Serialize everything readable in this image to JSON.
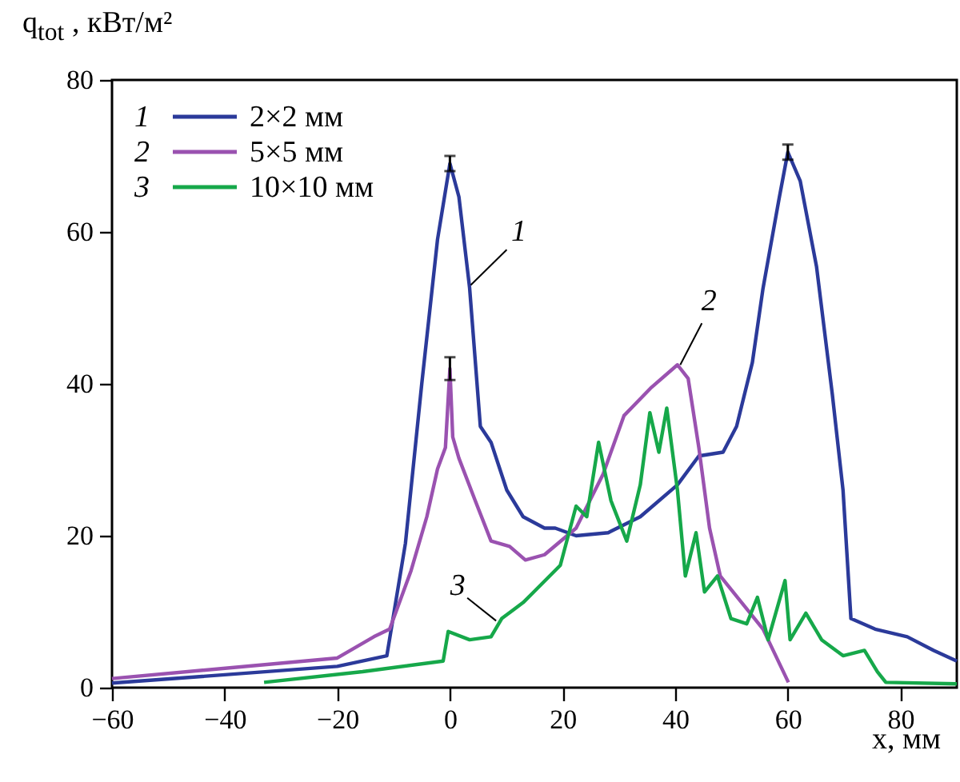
{
  "chart_data": {
    "type": "line",
    "xlabel": "x, мм",
    "ylabel": "q$_{tot}$ , кВт/м²",
    "xlim": [
      -60,
      90
    ],
    "xticks": [
      -60,
      -40,
      -20,
      0,
      20,
      40,
      60,
      80
    ],
    "ylim": [
      0,
      80
    ],
    "yticks": [
      0,
      20,
      40,
      60,
      80
    ],
    "grid": false,
    "legend": "top left",
    "series": [
      {
        "name": "2×2 мм",
        "color": "#2b3a9a",
        "x": [
          -60,
          -20,
          -11.2,
          -7.9,
          -5,
          -2.2,
          0,
          1.6,
          3.5,
          5.4,
          7.3,
          10.1,
          13,
          16.8,
          18.7,
          22.4,
          28.1,
          33.8,
          40.4,
          44.2,
          48.5,
          50.9,
          53.7,
          55.6,
          58.5,
          60,
          62.2,
          65.1,
          67.9,
          69.8,
          71.2,
          75.5,
          81.2,
          85.9,
          90
        ],
        "values": [
          0.6,
          2.8,
          4.2,
          19,
          40,
          59,
          69,
          64.6,
          52.6,
          34.4,
          32.3,
          26,
          22.5,
          21,
          21,
          20,
          20.4,
          22.5,
          26.7,
          30.5,
          31,
          34.4,
          42.8,
          52.6,
          64.6,
          70.5,
          66.7,
          55.4,
          38.6,
          26,
          9.1,
          7.7,
          6.7,
          4.9,
          3.5
        ],
        "errors": [
          null,
          null,
          null,
          null,
          null,
          null,
          1,
          null,
          null,
          null,
          null,
          null,
          null,
          null,
          null,
          null,
          null,
          null,
          null,
          null,
          null,
          null,
          null,
          null,
          null,
          1,
          null,
          null,
          null,
          null,
          null,
          null,
          null,
          null,
          null
        ]
      },
      {
        "name": "5×5 мм",
        "color": "#9a52b0",
        "x": [
          -60,
          -20,
          -13.5,
          -10.7,
          -6.9,
          -4.1,
          -2.2,
          -0.8,
          0,
          0.5,
          1.6,
          4.5,
          7.3,
          10.6,
          13.4,
          16.8,
          22.4,
          27.2,
          30.9,
          35.6,
          40.4,
          42.3,
          44.2,
          46.1,
          48,
          51.8,
          55.6,
          60.1
        ],
        "values": [
          1.2,
          3.9,
          6.7,
          7.7,
          15.4,
          22.5,
          28.8,
          31.6,
          42,
          33,
          30.2,
          24.6,
          19.3,
          18.6,
          16.8,
          17.5,
          21,
          28.1,
          35.8,
          39.4,
          42.5,
          40.7,
          31.6,
          21,
          14.7,
          11.2,
          7.7,
          0.7
        ],
        "errors": [
          null,
          null,
          null,
          null,
          null,
          null,
          null,
          null,
          1.5,
          null,
          null,
          null,
          null,
          null,
          null,
          null,
          null,
          null,
          null,
          null,
          null,
          null,
          null,
          null,
          null,
          null,
          null,
          null
        ]
      },
      {
        "name": "10×10 мм",
        "color": "#16a84a",
        "x": [
          -33,
          -15.5,
          -1.2,
          -0.3,
          3.5,
          7.3,
          9.2,
          13,
          14.9,
          19.6,
          22.4,
          24.3,
          26.4,
          28.6,
          31.4,
          33.8,
          35.5,
          37.1,
          38.5,
          40.4,
          41.8,
          43.7,
          45.2,
          47.5,
          49.9,
          52.7,
          54.6,
          56.5,
          59.5,
          60.4,
          63.2,
          66,
          69.8,
          73.6,
          75.9,
          77.4,
          90
        ],
        "values": [
          0.7,
          2.1,
          3.5,
          7.4,
          6.3,
          6.7,
          9.1,
          11.2,
          12.6,
          16.1,
          23.9,
          22.5,
          32.3,
          24.6,
          19.3,
          26.7,
          36.2,
          31,
          36.8,
          26,
          14.7,
          20.4,
          12.6,
          14.7,
          9.1,
          8.4,
          11.9,
          6.3,
          14.1,
          6.3,
          9.8,
          6.3,
          4.2,
          4.9,
          2.1,
          0.7,
          0.5
        ]
      }
    ],
    "annotations": [
      {
        "text": "1",
        "x": 3.7,
        "y": 53
      },
      {
        "text": "2",
        "x": 40.9,
        "y": 42.5
      },
      {
        "text": "3",
        "x": 8.2,
        "y": 8.8
      }
    ]
  }
}
